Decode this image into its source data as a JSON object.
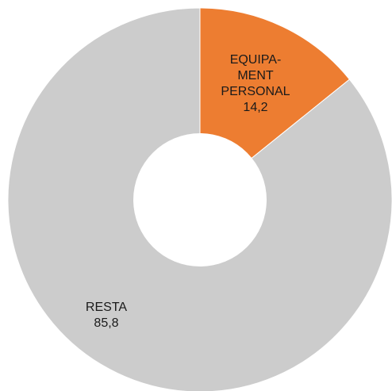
{
  "chart_data": {
    "type": "pie",
    "donut": true,
    "start_angle_deg": 0,
    "slices": [
      {
        "label_lines": [
          "EQUIPA-",
          "MENT",
          "PERSONAL"
        ],
        "value": 14.2,
        "value_text": "14,2",
        "color": "#ED7D31"
      },
      {
        "label_lines": [
          "RESTA"
        ],
        "value": 85.8,
        "value_text": "85,8",
        "color": "#CCCCCC"
      }
    ],
    "background": "#FFFFFF"
  }
}
